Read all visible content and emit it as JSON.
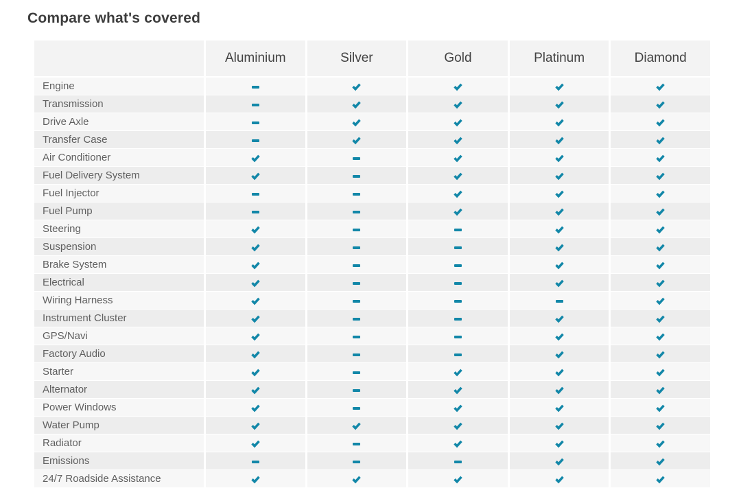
{
  "title": "Compare what's covered",
  "colors": {
    "accent": "#1287a8",
    "background": "#ffffff",
    "title_text": "#3d3d3d",
    "header_text": "#424242",
    "label_text": "#606060",
    "header_bg": "#f3f3f3",
    "row_odd": "#f7f7f7",
    "row_even": "#ededed"
  },
  "icons": {
    "covered": "check-icon",
    "not_covered": "dash-icon"
  },
  "table": {
    "feature_column_header": "",
    "plans": [
      "Aluminium",
      "Silver",
      "Gold",
      "Platinum",
      "Diamond"
    ],
    "rows": [
      {
        "feature": "Engine",
        "covered": [
          false,
          true,
          true,
          true,
          true
        ]
      },
      {
        "feature": "Transmission",
        "covered": [
          false,
          true,
          true,
          true,
          true
        ]
      },
      {
        "feature": "Drive Axle",
        "covered": [
          false,
          true,
          true,
          true,
          true
        ]
      },
      {
        "feature": "Transfer Case",
        "covered": [
          false,
          true,
          true,
          true,
          true
        ]
      },
      {
        "feature": "Air Conditioner",
        "covered": [
          true,
          false,
          true,
          true,
          true
        ]
      },
      {
        "feature": "Fuel Delivery System",
        "covered": [
          true,
          false,
          true,
          true,
          true
        ]
      },
      {
        "feature": "Fuel Injector",
        "covered": [
          false,
          false,
          true,
          true,
          true
        ]
      },
      {
        "feature": "Fuel Pump",
        "covered": [
          false,
          false,
          true,
          true,
          true
        ]
      },
      {
        "feature": "Steering",
        "covered": [
          true,
          false,
          false,
          true,
          true
        ]
      },
      {
        "feature": "Suspension",
        "covered": [
          true,
          false,
          false,
          true,
          true
        ]
      },
      {
        "feature": "Brake System",
        "covered": [
          true,
          false,
          false,
          true,
          true
        ]
      },
      {
        "feature": "Electrical",
        "covered": [
          true,
          false,
          false,
          true,
          true
        ]
      },
      {
        "feature": "Wiring Harness",
        "covered": [
          true,
          false,
          false,
          false,
          true
        ]
      },
      {
        "feature": "Instrument Cluster",
        "covered": [
          true,
          false,
          false,
          true,
          true
        ]
      },
      {
        "feature": "GPS/Navi",
        "covered": [
          true,
          false,
          false,
          true,
          true
        ]
      },
      {
        "feature": "Factory Audio",
        "covered": [
          true,
          false,
          false,
          true,
          true
        ]
      },
      {
        "feature": "Starter",
        "covered": [
          true,
          false,
          true,
          true,
          true
        ]
      },
      {
        "feature": "Alternator",
        "covered": [
          true,
          false,
          true,
          true,
          true
        ]
      },
      {
        "feature": "Power Windows",
        "covered": [
          true,
          false,
          true,
          true,
          true
        ]
      },
      {
        "feature": "Water Pump",
        "covered": [
          true,
          true,
          true,
          true,
          true
        ]
      },
      {
        "feature": "Radiator",
        "covered": [
          true,
          false,
          true,
          true,
          true
        ]
      },
      {
        "feature": "Emissions",
        "covered": [
          false,
          false,
          false,
          true,
          true
        ]
      },
      {
        "feature": "24/7 Roadside Assistance",
        "covered": [
          true,
          true,
          true,
          true,
          true
        ]
      }
    ]
  }
}
